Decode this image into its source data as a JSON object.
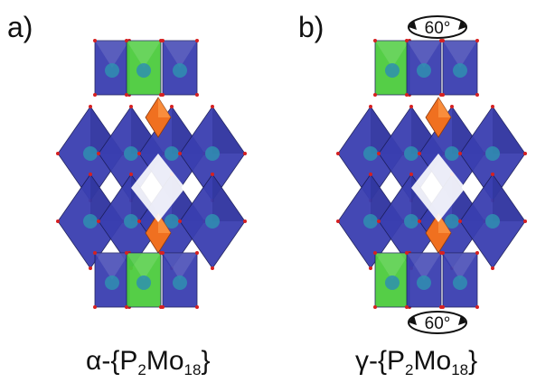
{
  "panels": [
    {
      "label": "a)",
      "formula": {
        "prefix": "α-{P",
        "sub1": "2",
        "mid": "Mo",
        "sub2": "18",
        "suffix": "}"
      },
      "rotation": []
    },
    {
      "label": "b)",
      "formula": {
        "prefix": "γ-{P",
        "sub1": "2",
        "mid": "Mo",
        "sub2": "18",
        "suffix": "}"
      },
      "rotation": [
        "60°",
        "60°"
      ]
    }
  ],
  "colors": {
    "octahedron_blue": "#3a3fb0",
    "octahedron_dark": "#262a86",
    "cap_green": "#4ccc3e",
    "phosphate_orange": "#f07020",
    "vertex_red": "#d62020",
    "metal_teal": "#2f8fb0"
  }
}
